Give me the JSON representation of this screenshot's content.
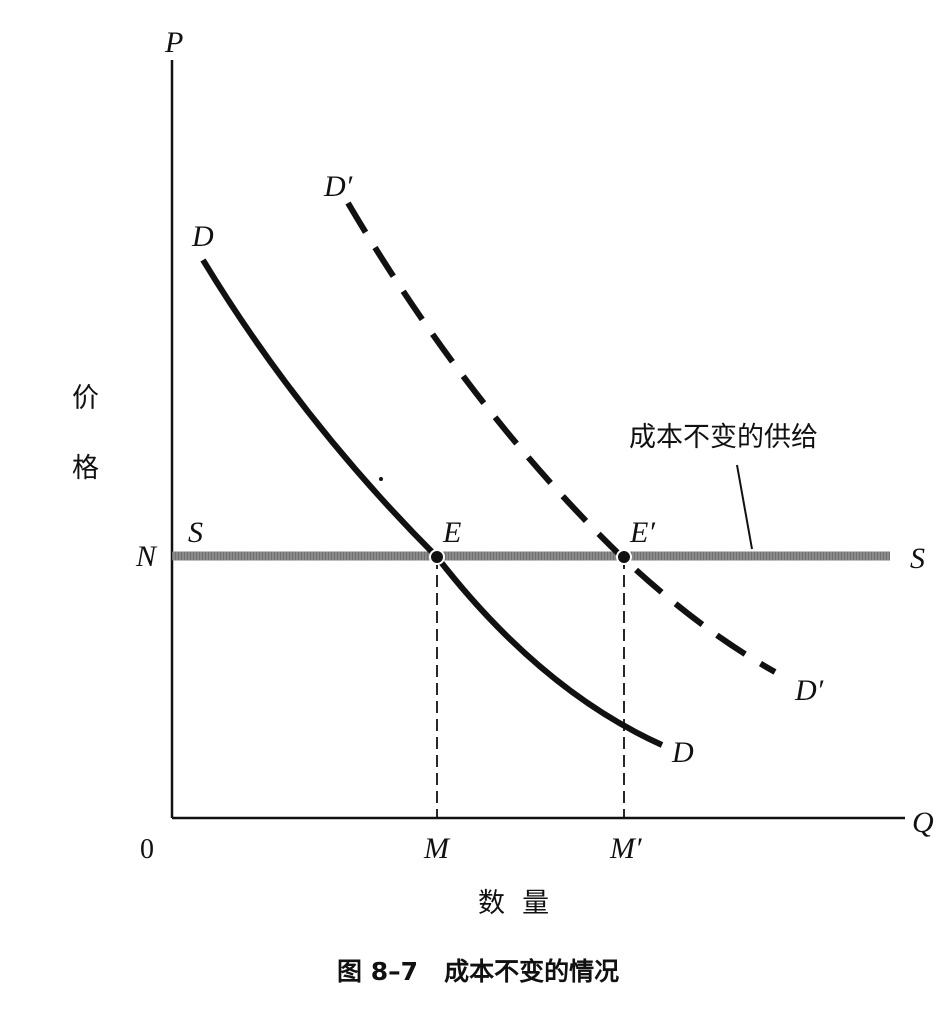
{
  "axes": {
    "y_label": "P",
    "x_label": "Q",
    "origin": "0",
    "y_title_1": "价",
    "y_title_2": "格",
    "x_title": "数  量"
  },
  "labels": {
    "N": "N",
    "S_left": "S",
    "S_right": "S",
    "D_top": "D",
    "D_bottom": "D",
    "Dp_top": "D′",
    "Dp_bottom": "D′",
    "E": "E",
    "Ep": "E′",
    "M": "M",
    "Mp": "M′",
    "supply_annotation": "成本不变的供给"
  },
  "caption": "图 8–7   成本不变的情况",
  "colors": {
    "supply_line": "#8a8a8a",
    "curves": "#111111"
  }
}
